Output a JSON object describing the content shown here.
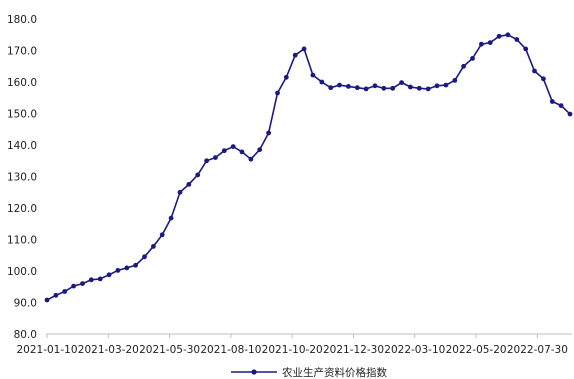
{
  "chart_data": {
    "type": "line",
    "title": "",
    "xlabel": "",
    "ylabel": "",
    "ylim": [
      80,
      180
    ],
    "y_ticks": [
      "80.0",
      "90.0",
      "100.0",
      "110.0",
      "120.0",
      "130.0",
      "140.0",
      "150.0",
      "160.0",
      "170.0",
      "180.0"
    ],
    "x_tick_labels": [
      "2021-01-10",
      "2021-03-20",
      "2021-05-30",
      "2021-08-10",
      "2021-10-20",
      "2021-12-30",
      "2022-03-10",
      "2022-05-20",
      "2022-07-30"
    ],
    "grid": false,
    "legend_position": "bottom-center",
    "colors": {
      "line": "#1a1a80",
      "axis": "#bfbfbf",
      "text": "#222222"
    },
    "series": [
      {
        "name": "农业生产资料价格指数",
        "values": [
          90.8,
          92.3,
          93.5,
          95.2,
          96.0,
          97.2,
          97.5,
          98.8,
          100.2,
          101.0,
          101.8,
          104.5,
          107.8,
          111.5,
          116.8,
          125.0,
          127.5,
          130.5,
          135.0,
          136.0,
          138.2,
          139.5,
          137.8,
          135.5,
          138.5,
          143.8,
          156.5,
          161.5,
          168.5,
          170.5,
          162.2,
          160.0,
          158.2,
          159.0,
          158.6,
          158.2,
          157.8,
          158.8,
          158.0,
          158.0,
          159.8,
          158.4,
          158.0,
          157.8,
          158.8,
          159.0,
          160.5,
          165.0,
          167.5,
          172.0,
          172.5,
          174.5,
          175.0,
          173.5,
          170.5,
          163.5,
          161.0,
          153.8,
          152.5,
          149.8
        ]
      }
    ]
  }
}
